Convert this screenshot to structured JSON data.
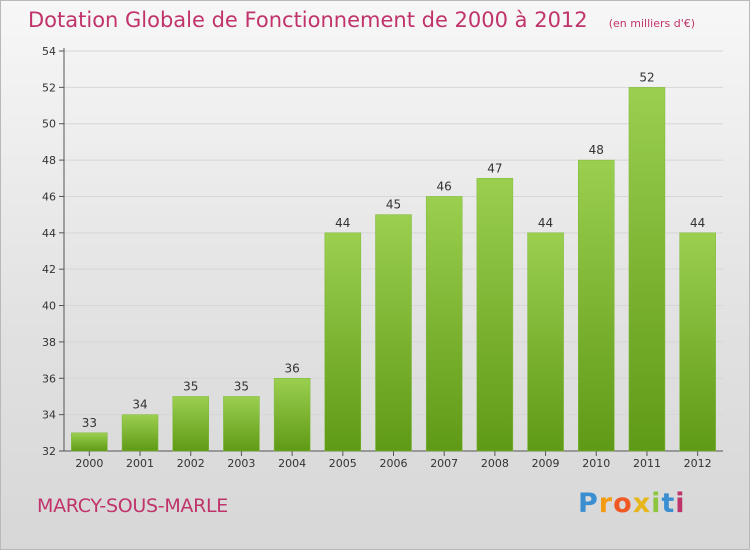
{
  "title": "Dotation Globale de Fonctionnement de 2000 à 2012",
  "subtitle": "(en milliers d'€)",
  "commune": "MARCY-SOUS-MARLE",
  "brand": "Proxiti",
  "colors": {
    "accent": "#c0336b",
    "bar_top": "#9bcf4f",
    "bar_bottom": "#5f9a16",
    "grid": "#d6d6d6",
    "axis": "#555555"
  },
  "chart_data": {
    "type": "bar",
    "title": "Dotation Globale de Fonctionnement de 2000 à 2012",
    "subtitle": "(en milliers d'€)",
    "categories": [
      "2000",
      "2001",
      "2002",
      "2003",
      "2004",
      "2005",
      "2006",
      "2007",
      "2008",
      "2009",
      "2010",
      "2011",
      "2012"
    ],
    "values": [
      33,
      34,
      35,
      35,
      36,
      44,
      45,
      46,
      47,
      44,
      48,
      52,
      44
    ],
    "ylim": [
      32,
      54
    ],
    "yticks": [
      32,
      34,
      36,
      38,
      40,
      42,
      44,
      46,
      48,
      50,
      52,
      54
    ],
    "xlabel": "",
    "ylabel": "",
    "grid": true,
    "data_labels": true
  }
}
